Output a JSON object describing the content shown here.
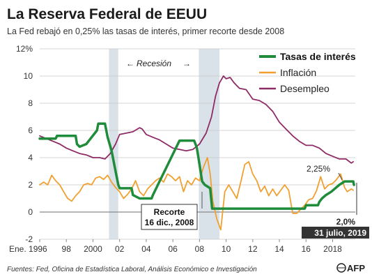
{
  "chart_data": {
    "type": "line",
    "title": "La Reserva Federal de EEUU",
    "subtitle": "La Fed rebajó en 0,25% las tasas de interés, primer recorte desde 2008",
    "ylim": [
      -2,
      12
    ],
    "xlim": [
      1996,
      2019.7
    ],
    "y_ticks": [
      {
        "value": 12,
        "label": "12%"
      },
      {
        "value": 10,
        "label": "10"
      },
      {
        "value": 8,
        "label": "8"
      },
      {
        "value": 6,
        "label": "6"
      },
      {
        "value": 4,
        "label": "4"
      },
      {
        "value": 2,
        "label": "2"
      },
      {
        "value": 0,
        "label": "0"
      },
      {
        "value": -2,
        "label": "-2"
      }
    ],
    "x_ticks": [
      {
        "value": 1996,
        "label": "Ene. 1996"
      },
      {
        "value": 1998,
        "label": "98"
      },
      {
        "value": 2000,
        "label": "2000"
      },
      {
        "value": 2002,
        "label": "02"
      },
      {
        "value": 2004,
        "label": "04"
      },
      {
        "value": 2006,
        "label": "06"
      },
      {
        "value": 2008,
        "label": "08"
      },
      {
        "value": 2010,
        "label": "10"
      },
      {
        "value": 2012,
        "label": "12"
      },
      {
        "value": 2014,
        "label": "14"
      },
      {
        "value": 2016,
        "label": "16"
      },
      {
        "value": 2018,
        "label": "2018"
      }
    ],
    "grid": "horizontal",
    "legend_position": "top-right",
    "recessions": [
      {
        "start": 2001.2,
        "end": 2001.9
      },
      {
        "start": 2007.95,
        "end": 2009.5
      }
    ],
    "recession_label": "Recesión",
    "series": [
      {
        "name": "Tasas de interés",
        "color": "#1e8c3a",
        "points": [
          [
            1996.0,
            5.4
          ],
          [
            1997.2,
            5.4
          ],
          [
            1997.3,
            5.6
          ],
          [
            1998.7,
            5.6
          ],
          [
            1998.8,
            5.0
          ],
          [
            1999.0,
            4.8
          ],
          [
            1999.5,
            5.0
          ],
          [
            1999.9,
            5.5
          ],
          [
            2000.3,
            6.0
          ],
          [
            2000.4,
            6.5
          ],
          [
            2000.9,
            6.5
          ],
          [
            2001.1,
            5.5
          ],
          [
            2001.4,
            4.5
          ],
          [
            2001.7,
            3.0
          ],
          [
            2001.9,
            2.0
          ],
          [
            2002.0,
            1.75
          ],
          [
            2002.9,
            1.75
          ],
          [
            2003.0,
            1.25
          ],
          [
            2003.5,
            1.0
          ],
          [
            2004.4,
            1.0
          ],
          [
            2004.5,
            1.25
          ],
          [
            2005.0,
            2.25
          ],
          [
            2005.5,
            3.25
          ],
          [
            2006.0,
            4.25
          ],
          [
            2006.5,
            5.25
          ],
          [
            2007.6,
            5.25
          ],
          [
            2007.8,
            4.75
          ],
          [
            2008.0,
            3.5
          ],
          [
            2008.2,
            2.25
          ],
          [
            2008.4,
            2.0
          ],
          [
            2008.8,
            1.75
          ],
          [
            2008.95,
            0.25
          ],
          [
            2015.9,
            0.25
          ],
          [
            2016.0,
            0.5
          ],
          [
            2016.9,
            0.5
          ],
          [
            2017.0,
            0.75
          ],
          [
            2017.2,
            1.0
          ],
          [
            2017.5,
            1.25
          ],
          [
            2017.9,
            1.5
          ],
          [
            2018.2,
            1.75
          ],
          [
            2018.5,
            2.0
          ],
          [
            2018.9,
            2.25
          ],
          [
            2019.55,
            2.25
          ],
          [
            2019.6,
            2.0
          ]
        ]
      },
      {
        "name": "Inflación",
        "color": "#f0a030",
        "points": [
          [
            1996.0,
            2.0
          ],
          [
            1996.3,
            2.2
          ],
          [
            1996.6,
            2.0
          ],
          [
            1996.9,
            2.7
          ],
          [
            1997.2,
            2.3
          ],
          [
            1997.5,
            2.0
          ],
          [
            1997.8,
            1.5
          ],
          [
            1998.1,
            1.0
          ],
          [
            1998.4,
            0.8
          ],
          [
            1998.7,
            1.2
          ],
          [
            1999.0,
            1.5
          ],
          [
            1999.3,
            2.0
          ],
          [
            1999.6,
            2.1
          ],
          [
            1999.9,
            2.0
          ],
          [
            2000.2,
            2.5
          ],
          [
            2000.5,
            2.6
          ],
          [
            2000.8,
            2.4
          ],
          [
            2001.1,
            2.7
          ],
          [
            2001.4,
            2.2
          ],
          [
            2001.7,
            1.8
          ],
          [
            2002.0,
            1.5
          ],
          [
            2002.3,
            1.0
          ],
          [
            2002.6,
            1.3
          ],
          [
            2002.9,
            1.7
          ],
          [
            2003.2,
            2.3
          ],
          [
            2003.5,
            1.5
          ],
          [
            2003.8,
            1.2
          ],
          [
            2004.1,
            1.7
          ],
          [
            2004.4,
            2.0
          ],
          [
            2004.7,
            2.3
          ],
          [
            2005.0,
            2.5
          ],
          [
            2005.3,
            2.2
          ],
          [
            2005.6,
            2.8
          ],
          [
            2005.9,
            2.6
          ],
          [
            2006.2,
            2.3
          ],
          [
            2006.5,
            2.6
          ],
          [
            2006.8,
            1.5
          ],
          [
            2007.1,
            2.3
          ],
          [
            2007.4,
            2.0
          ],
          [
            2007.7,
            2.5
          ],
          [
            2008.0,
            2.3
          ],
          [
            2008.3,
            3.3
          ],
          [
            2008.6,
            4.0
          ],
          [
            2008.8,
            2.8
          ],
          [
            2009.0,
            0.8
          ],
          [
            2009.3,
            -0.5
          ],
          [
            2009.6,
            -1.3
          ],
          [
            2009.9,
            1.5
          ],
          [
            2010.2,
            2.0
          ],
          [
            2010.5,
            1.5
          ],
          [
            2010.8,
            1.0
          ],
          [
            2011.1,
            2.2
          ],
          [
            2011.4,
            3.5
          ],
          [
            2011.7,
            3.7
          ],
          [
            2012.0,
            2.8
          ],
          [
            2012.3,
            2.3
          ],
          [
            2012.6,
            1.5
          ],
          [
            2012.9,
            1.9
          ],
          [
            2013.2,
            1.2
          ],
          [
            2013.5,
            1.7
          ],
          [
            2013.8,
            1.2
          ],
          [
            2014.1,
            1.6
          ],
          [
            2014.4,
            2.0
          ],
          [
            2014.7,
            1.6
          ],
          [
            2015.0,
            -0.1
          ],
          [
            2015.3,
            -0.1
          ],
          [
            2015.6,
            0.2
          ],
          [
            2015.9,
            0.5
          ],
          [
            2016.2,
            0.9
          ],
          [
            2016.5,
            1.0
          ],
          [
            2016.8,
            1.6
          ],
          [
            2017.1,
            2.6
          ],
          [
            2017.4,
            1.7
          ],
          [
            2017.7,
            2.0
          ],
          [
            2018.0,
            2.1
          ],
          [
            2018.3,
            2.4
          ],
          [
            2018.6,
            2.8
          ],
          [
            2018.9,
            1.8
          ],
          [
            2019.1,
            1.5
          ],
          [
            2019.4,
            1.7
          ],
          [
            2019.55,
            1.6
          ]
        ]
      },
      {
        "name": "Desempleo",
        "color": "#8e2a65",
        "points": [
          [
            1996.0,
            5.6
          ],
          [
            1996.5,
            5.4
          ],
          [
            1997.0,
            5.2
          ],
          [
            1997.5,
            5.0
          ],
          [
            1998.0,
            4.7
          ],
          [
            1998.5,
            4.5
          ],
          [
            1999.0,
            4.3
          ],
          [
            1999.5,
            4.2
          ],
          [
            2000.0,
            4.0
          ],
          [
            2000.5,
            4.0
          ],
          [
            2000.9,
            3.9
          ],
          [
            2001.3,
            4.3
          ],
          [
            2001.7,
            5.0
          ],
          [
            2002.0,
            5.7
          ],
          [
            2002.5,
            5.8
          ],
          [
            2003.0,
            5.9
          ],
          [
            2003.5,
            6.2
          ],
          [
            2003.7,
            6.1
          ],
          [
            2004.0,
            5.7
          ],
          [
            2004.5,
            5.5
          ],
          [
            2005.0,
            5.3
          ],
          [
            2005.5,
            5.0
          ],
          [
            2006.0,
            4.7
          ],
          [
            2006.5,
            4.6
          ],
          [
            2007.0,
            4.5
          ],
          [
            2007.5,
            4.6
          ],
          [
            2008.0,
            5.0
          ],
          [
            2008.5,
            5.8
          ],
          [
            2008.9,
            7.0
          ],
          [
            2009.2,
            8.5
          ],
          [
            2009.5,
            9.5
          ],
          [
            2009.8,
            10.0
          ],
          [
            2010.0,
            9.8
          ],
          [
            2010.3,
            9.9
          ],
          [
            2010.6,
            9.5
          ],
          [
            2011.0,
            9.1
          ],
          [
            2011.5,
            9.0
          ],
          [
            2012.0,
            8.3
          ],
          [
            2012.5,
            8.2
          ],
          [
            2013.0,
            7.9
          ],
          [
            2013.5,
            7.4
          ],
          [
            2014.0,
            6.6
          ],
          [
            2014.5,
            6.1
          ],
          [
            2015.0,
            5.6
          ],
          [
            2015.5,
            5.2
          ],
          [
            2016.0,
            4.9
          ],
          [
            2016.5,
            4.9
          ],
          [
            2017.0,
            4.7
          ],
          [
            2017.5,
            4.3
          ],
          [
            2018.0,
            4.1
          ],
          [
            2018.5,
            3.9
          ],
          [
            2019.0,
            3.9
          ],
          [
            2019.4,
            3.6
          ],
          [
            2019.55,
            3.7
          ]
        ]
      }
    ],
    "annotations": {
      "recorte_line1": "Recorte",
      "recorte_line2": "16 dic., 2008",
      "peak_label": "2,25%",
      "last_value": "2,0%",
      "last_date": "31 julio, 2019"
    }
  },
  "footer": {
    "sources": "Fuentes: Fed, Oficina de Estadística Laboral, Análisis Económico e Investigación",
    "logo": "AFP"
  }
}
